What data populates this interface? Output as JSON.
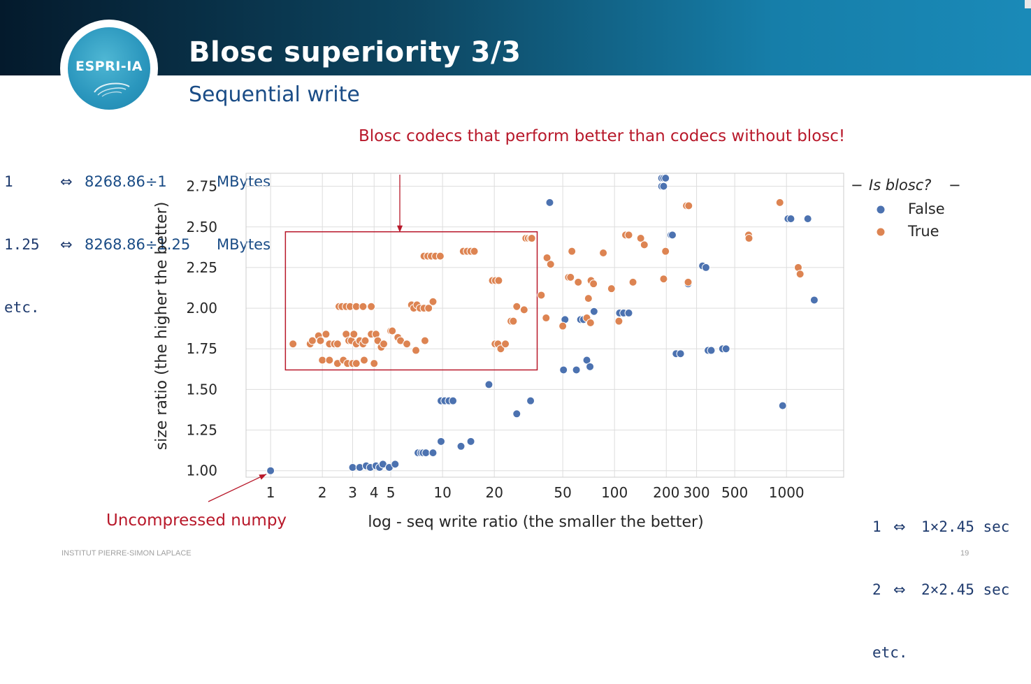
{
  "slide": {
    "title": "Blosc superiority 3/3",
    "subtitle": "Sequential write",
    "logo_text": "ESPRI-IA",
    "footer_left": "INSTITUT PIERRE-SIMON LAPLACE",
    "page_number": "19",
    "colors": {
      "header_dark": "#041a2c",
      "header_light": "#1a8ab8",
      "accent_red": "#b8182a",
      "subtitle_blue": "#1a4c86"
    }
  },
  "notes": {
    "left": [
      {
        "value": "1",
        "sym": "⇔",
        "expr": "8268.86÷1",
        "unit": "MBytes"
      },
      {
        "value": "1.25",
        "sym": "⇔",
        "expr": "8268.86÷1.25",
        "unit": "MBytes"
      },
      {
        "value": "etc."
      }
    ],
    "right": [
      {
        "value": "1",
        "sym": "⇔",
        "expr": "1×2.45 sec"
      },
      {
        "value": "2",
        "sym": "⇔",
        "expr": "2×2.45 sec"
      },
      {
        "value": "etc."
      }
    ]
  },
  "annotations": {
    "top": "Blosc codecs that perform better than codecs without blosc!",
    "bottom": "Uncompressed numpy"
  },
  "chart_data": {
    "type": "scatter",
    "title": "",
    "xlabel": "log - seq write ratio (the smaller the better)",
    "ylabel": "size ratio (the higher the better)",
    "x_scale": "log",
    "xlim": [
      0.72,
      2150
    ],
    "ylim": [
      0.96,
      2.83
    ],
    "x_ticks": [
      1,
      2,
      3,
      4,
      5,
      10,
      20,
      50,
      100,
      200,
      300,
      500,
      1000
    ],
    "x_tick_labels": [
      "1",
      "2",
      "3",
      "4",
      "5",
      "10",
      "20",
      "50",
      "100",
      "200",
      "300",
      "500",
      "1000"
    ],
    "y_ticks": [
      1.0,
      1.25,
      1.5,
      1.75,
      2.0,
      2.25,
      2.5,
      2.75
    ],
    "y_tick_labels": [
      "1.00",
      "1.25",
      "1.50",
      "1.75",
      "2.00",
      "2.25",
      "2.50",
      "2.75"
    ],
    "grid": true,
    "legend": {
      "title": "Is blosc?",
      "placement": "outside-right",
      "entries": [
        "False",
        "True"
      ]
    },
    "highlight_box": {
      "x_range": [
        1.22,
        35.5
      ],
      "y_range": [
        1.62,
        2.47
      ]
    },
    "series": [
      {
        "name": "False",
        "color": "#4c72b0",
        "points": [
          [
            1.0,
            1.0
          ],
          [
            3.0,
            1.02
          ],
          [
            3.3,
            1.02
          ],
          [
            3.6,
            1.03
          ],
          [
            3.8,
            1.02
          ],
          [
            4.1,
            1.03
          ],
          [
            4.3,
            1.02
          ],
          [
            4.5,
            1.04
          ],
          [
            4.9,
            1.02
          ],
          [
            5.3,
            1.04
          ],
          [
            7.2,
            1.11
          ],
          [
            7.5,
            1.11
          ],
          [
            7.7,
            1.11
          ],
          [
            8.0,
            1.11
          ],
          [
            8.8,
            1.11
          ],
          [
            9.8,
            1.18
          ],
          [
            12.8,
            1.15
          ],
          [
            14.6,
            1.18
          ],
          [
            9.8,
            1.43
          ],
          [
            10.3,
            1.43
          ],
          [
            10.9,
            1.43
          ],
          [
            11.5,
            1.43
          ],
          [
            18.6,
            1.53
          ],
          [
            27.0,
            1.35
          ],
          [
            32.5,
            1.43
          ],
          [
            42.0,
            2.65
          ],
          [
            50.5,
            1.62
          ],
          [
            51.5,
            1.93
          ],
          [
            60.0,
            1.62
          ],
          [
            63.5,
            1.93
          ],
          [
            66.0,
            1.93
          ],
          [
            69.0,
            1.68
          ],
          [
            72.0,
            1.64
          ],
          [
            76.0,
            1.98
          ],
          [
            107.0,
            1.97
          ],
          [
            113.0,
            1.97
          ],
          [
            121.0,
            1.97
          ],
          [
            188.0,
            2.8
          ],
          [
            193.0,
            2.8
          ],
          [
            198.0,
            2.8
          ],
          [
            188.0,
            2.75
          ],
          [
            193.0,
            2.75
          ],
          [
            213.0,
            2.45
          ],
          [
            217.0,
            2.45
          ],
          [
            228.0,
            1.72
          ],
          [
            242.0,
            1.72
          ],
          [
            268.0,
            2.15
          ],
          [
            325.0,
            2.26
          ],
          [
            340.0,
            2.25
          ],
          [
            350.0,
            1.74
          ],
          [
            365.0,
            1.74
          ],
          [
            425.0,
            1.75
          ],
          [
            445.0,
            1.75
          ],
          [
            950.0,
            1.4
          ],
          [
            1020.0,
            2.55
          ],
          [
            1060.0,
            2.55
          ],
          [
            1330.0,
            2.55
          ],
          [
            1450.0,
            2.05
          ]
        ]
      },
      {
        "name": "True",
        "color": "#dd8452",
        "points": [
          [
            1.35,
            1.78
          ],
          [
            1.7,
            1.78
          ],
          [
            1.75,
            1.8
          ],
          [
            1.9,
            1.83
          ],
          [
            1.95,
            1.8
          ],
          [
            2.1,
            1.84
          ],
          [
            2.2,
            1.78
          ],
          [
            2.35,
            1.78
          ],
          [
            2.45,
            1.78
          ],
          [
            2.5,
            2.01
          ],
          [
            2.6,
            2.01
          ],
          [
            2.75,
            1.84
          ],
          [
            2.85,
            1.8
          ],
          [
            2.95,
            1.8
          ],
          [
            3.05,
            1.84
          ],
          [
            3.15,
            1.78
          ],
          [
            3.3,
            1.8
          ],
          [
            3.45,
            1.78
          ],
          [
            3.55,
            1.8
          ],
          [
            3.85,
            1.84
          ],
          [
            2.75,
            2.01
          ],
          [
            2.9,
            2.01
          ],
          [
            3.15,
            2.01
          ],
          [
            3.45,
            2.01
          ],
          [
            3.85,
            2.01
          ],
          [
            2.0,
            1.68
          ],
          [
            2.2,
            1.68
          ],
          [
            2.45,
            1.66
          ],
          [
            2.65,
            1.68
          ],
          [
            2.8,
            1.66
          ],
          [
            3.0,
            1.66
          ],
          [
            3.15,
            1.66
          ],
          [
            3.5,
            1.68
          ],
          [
            4.0,
            1.66
          ],
          [
            4.1,
            1.84
          ],
          [
            4.2,
            1.8
          ],
          [
            4.4,
            1.76
          ],
          [
            4.55,
            1.78
          ],
          [
            5.0,
            1.86
          ],
          [
            5.1,
            1.86
          ],
          [
            5.5,
            1.82
          ],
          [
            5.7,
            1.8
          ],
          [
            6.2,
            1.78
          ],
          [
            6.6,
            2.02
          ],
          [
            6.8,
            2.0
          ],
          [
            7.1,
            2.02
          ],
          [
            7.4,
            2.0
          ],
          [
            7.8,
            2.0
          ],
          [
            8.3,
            2.0
          ],
          [
            8.8,
            2.04
          ],
          [
            7.0,
            1.74
          ],
          [
            7.9,
            1.8
          ],
          [
            7.8,
            2.32
          ],
          [
            8.2,
            2.32
          ],
          [
            8.6,
            2.32
          ],
          [
            9.1,
            2.32
          ],
          [
            9.7,
            2.32
          ],
          [
            13.2,
            2.35
          ],
          [
            13.9,
            2.35
          ],
          [
            14.6,
            2.35
          ],
          [
            15.3,
            2.35
          ],
          [
            19.5,
            2.17
          ],
          [
            20.3,
            2.17
          ],
          [
            21.2,
            2.17
          ],
          [
            20.2,
            1.78
          ],
          [
            21.0,
            1.78
          ],
          [
            21.8,
            1.75
          ],
          [
            23.2,
            1.78
          ],
          [
            25.0,
            1.92
          ],
          [
            25.8,
            1.92
          ],
          [
            27.0,
            2.01
          ],
          [
            29.8,
            1.99
          ],
          [
            30.5,
            2.43
          ],
          [
            31.5,
            2.43
          ],
          [
            32.5,
            2.43
          ],
          [
            33.0,
            2.43
          ],
          [
            37.5,
            2.08
          ],
          [
            40.0,
            1.94
          ],
          [
            40.5,
            2.31
          ],
          [
            42.5,
            2.27
          ],
          [
            50.0,
            1.89
          ],
          [
            54.0,
            2.19
          ],
          [
            55.5,
            2.19
          ],
          [
            56.5,
            2.35
          ],
          [
            61.5,
            2.16
          ],
          [
            69.0,
            1.94
          ],
          [
            70.5,
            2.06
          ],
          [
            72.5,
            1.91
          ],
          [
            73.0,
            2.17
          ],
          [
            75.5,
            2.15
          ],
          [
            86.0,
            2.34
          ],
          [
            96.0,
            2.12
          ],
          [
            106.0,
            1.92
          ],
          [
            116.0,
            2.45
          ],
          [
            121.0,
            2.45
          ],
          [
            128.0,
            2.16
          ],
          [
            142.0,
            2.43
          ],
          [
            149.0,
            2.39
          ],
          [
            193.0,
            2.18
          ],
          [
            198.0,
            2.35
          ],
          [
            268.0,
            2.16
          ],
          [
            262.0,
            2.63
          ],
          [
            270.0,
            2.63
          ],
          [
            602.0,
            2.45
          ],
          [
            605.0,
            2.43
          ],
          [
            915.0,
            2.65
          ],
          [
            1170.0,
            2.25
          ],
          [
            1200.0,
            2.21
          ]
        ]
      }
    ]
  }
}
